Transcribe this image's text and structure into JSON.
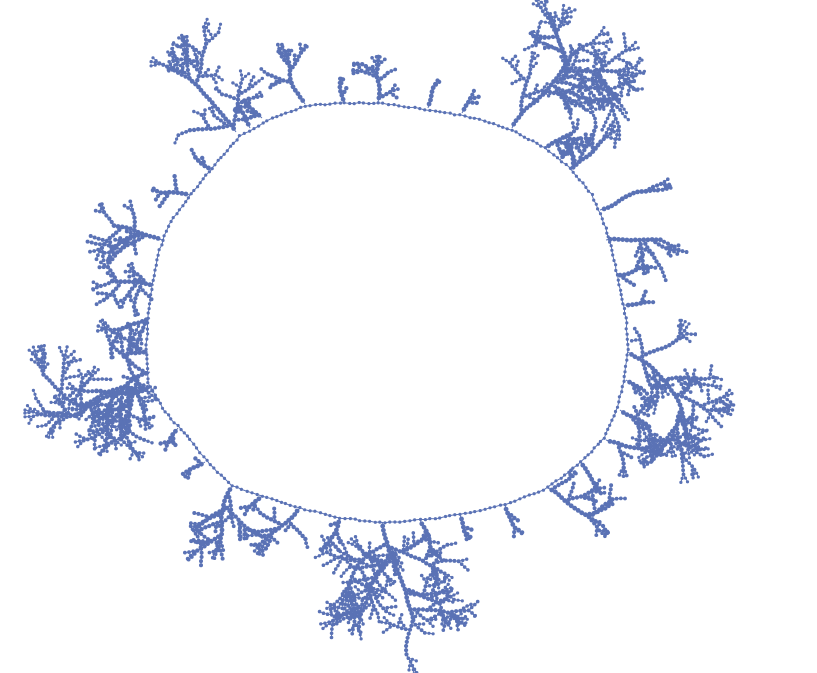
{
  "figure": {
    "description_visible_text": "",
    "node_color": "#5a72b5",
    "edge_color": "#5a72b5",
    "background_color": "#ffffff",
    "structure": "ring-with-branching-trees"
  }
}
